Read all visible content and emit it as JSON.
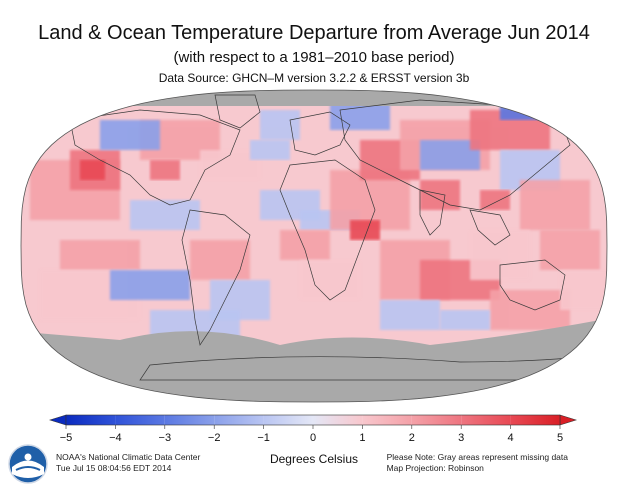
{
  "title": "Land & Ocean Temperature Departure from Average Jun 2014",
  "subtitle": "(with respect to a 1981–2010 base period)",
  "data_source": "Data Source: GHCN–M version 3.2.2 & ERSST version 3b",
  "colorbar": {
    "ticks": [
      "−5",
      "−4",
      "−3",
      "−2",
      "−1",
      "0",
      "1",
      "2",
      "3",
      "4",
      "5"
    ],
    "values": [
      -5,
      -4,
      -3,
      -2,
      -1,
      0,
      1,
      2,
      3,
      4,
      5
    ],
    "units": "Degrees Celsius",
    "colors": [
      "#0b2bbf",
      "#2f52d8",
      "#5a78e2",
      "#8aa0ea",
      "#b9c5f2",
      "#e4e7f6",
      "#f8c7cd",
      "#f4a1a8",
      "#ee7580",
      "#e84954",
      "#d91f26"
    ],
    "missing_color": "#a9a9a9"
  },
  "footer": {
    "agency": "NOAA's National Climatic Data Center",
    "timestamp": "Tue Jul 15 08:04:56 EDT 2014",
    "note": "Please Note: Gray areas represent missing data",
    "projection": "Map Projection: Robinson"
  },
  "logo_text": "NOAA",
  "map": {
    "projection": "Robinson",
    "missing_regions": [
      "Arctic Ocean",
      "Southern Ocean",
      "Antarctica"
    ]
  }
}
